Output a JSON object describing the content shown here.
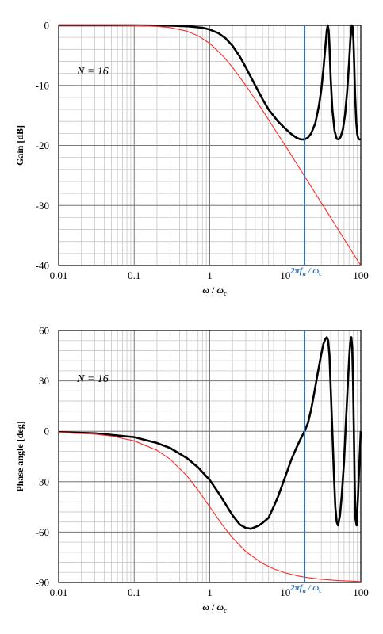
{
  "chart_data": [
    {
      "type": "line",
      "xscale": "log",
      "xlabel_main": "ω",
      "xlabel_sep": " / ",
      "xlabel_main2": "ω",
      "xlabel_sub": "c",
      "ylabel": "Gain [dB]",
      "xlim": [
        0.01,
        100
      ],
      "ylim": [
        -40,
        0
      ],
      "x_ticks": [
        "0.01",
        "0.1",
        "1",
        "10",
        "100"
      ],
      "y_ticks": [
        "0",
        "-10",
        "-20",
        "-30",
        "-40"
      ],
      "y_tick_values": [
        0,
        -10,
        -20,
        -30,
        -40
      ],
      "annotation_N": "N = 16",
      "marker": {
        "x": 18.0,
        "label_2pi": "2π",
        "label_f": "f",
        "label_f_sub": "n",
        "label_sep": " / ",
        "label_w": "ω",
        "label_w_sub": "c"
      },
      "grid": true,
      "colors": {
        "black": "#000000",
        "red": "#ff2a2a",
        "marker": "#2f72b8"
      },
      "series": [
        {
          "color": "#000000",
          "x": [
            0.01,
            0.1,
            0.3,
            0.5,
            0.8,
            1.0,
            1.3,
            1.6,
            2.0,
            2.5,
            3.0,
            4.0,
            5.0,
            6.0,
            8.0,
            10.0,
            12.0,
            14.0,
            16.0,
            18.0,
            20.0,
            22.0,
            25.0,
            28.0,
            30.0,
            32.0,
            34.0,
            35.5,
            36.5,
            37.5,
            38.5,
            40.0,
            42.0,
            45.0,
            48.0,
            51.0,
            54.0,
            58.0,
            62.0,
            66.0,
            70.0,
            73.0,
            76.0,
            78.0,
            80.0,
            82.0,
            84.0,
            87.0,
            90.0,
            93.0,
            96.0,
            100.0
          ],
          "y": [
            0,
            0,
            -0.05,
            -0.15,
            -0.4,
            -0.7,
            -1.3,
            -2.1,
            -3.4,
            -5.2,
            -7.0,
            -10.0,
            -12.3,
            -14.0,
            -16.0,
            -17.2,
            -18.1,
            -18.7,
            -19.0,
            -19.0,
            -18.7,
            -18.0,
            -16.3,
            -13.3,
            -10.7,
            -7.3,
            -3.5,
            -0.8,
            0,
            -0.8,
            -3.5,
            -9.0,
            -14.0,
            -17.6,
            -18.9,
            -19.0,
            -18.6,
            -17.3,
            -14.8,
            -11.0,
            -6.2,
            -2.3,
            0,
            -0.3,
            -2.5,
            -6.8,
            -11.5,
            -16.0,
            -18.2,
            -18.9,
            -19.0,
            -19.0
          ]
        },
        {
          "color": "#ff2a2a",
          "x": [
            0.01,
            0.05,
            0.1,
            0.2,
            0.3,
            0.5,
            0.7,
            1.0,
            1.5,
            2.0,
            3.0,
            5.0,
            7.0,
            10.0,
            20.0,
            30.0,
            50.0,
            100.0
          ],
          "y": [
            0,
            0,
            -0.04,
            -0.17,
            -0.37,
            -0.97,
            -1.74,
            -3.01,
            -5.12,
            -6.99,
            -10.0,
            -14.15,
            -17.03,
            -20.04,
            -26.03,
            -29.55,
            -33.98,
            -40.0
          ]
        }
      ]
    },
    {
      "type": "line",
      "xscale": "log",
      "xlabel_main": "ω",
      "xlabel_sep": " / ",
      "xlabel_main2": "ω",
      "xlabel_sub": "c",
      "ylabel": "Phase angle [deg]",
      "xlim": [
        0.01,
        100
      ],
      "ylim": [
        -90,
        60
      ],
      "x_ticks": [
        "0.01",
        "0.1",
        "1",
        "10",
        "100"
      ],
      "y_ticks": [
        "60",
        "30",
        "0",
        "-30",
        "-60",
        "-90"
      ],
      "y_tick_values": [
        60,
        30,
        0,
        -30,
        -60,
        -90
      ],
      "annotation_N": "N = 16",
      "marker": {
        "x": 18.0,
        "label_2pi": "2π",
        "label_f": "f",
        "label_f_sub": "n",
        "label_sep": " / ",
        "label_w": "ω",
        "label_w_sub": "c"
      },
      "grid": true,
      "colors": {
        "black": "#000000",
        "red": "#ff2a2a",
        "marker": "#2f72b8"
      },
      "series": [
        {
          "color": "#000000",
          "x": [
            0.01,
            0.03,
            0.1,
            0.2,
            0.3,
            0.5,
            0.7,
            1.0,
            1.3,
            1.6,
            2.0,
            2.5,
            3.0,
            3.5,
            4.0,
            4.5,
            5.0,
            6.0,
            7.0,
            8.0,
            10.0,
            12.0,
            14.0,
            16.0,
            18.0,
            20.0,
            22.0,
            24.0,
            27.0,
            30.0,
            32.0,
            34.0,
            35.5,
            37.0,
            38.5,
            40.0,
            42.0,
            44.0,
            46.0,
            48.0,
            50.0,
            53.0,
            56.0,
            60.0,
            64.0,
            68.0,
            71.0,
            73.0,
            75.0,
            77.0,
            79.0,
            81.0,
            83.0,
            85.0,
            88.0,
            92.0,
            96.0,
            100.0
          ],
          "y": [
            -0.5,
            -1.2,
            -3.5,
            -7.0,
            -10.0,
            -16.0,
            -21.5,
            -29.0,
            -36.5,
            -43.0,
            -50.0,
            -55.5,
            -57.5,
            -58.0,
            -57.0,
            -56.0,
            -54.5,
            -51.5,
            -45.0,
            -39.0,
            -27.0,
            -17.0,
            -10.0,
            -4.5,
            0,
            5.0,
            13.0,
            22.0,
            35.0,
            46.0,
            52.0,
            55.0,
            56.0,
            54.0,
            45.0,
            25.0,
            0,
            -25.0,
            -45.0,
            -54.0,
            -56.0,
            -50.0,
            -38.0,
            -18.0,
            8.0,
            32.0,
            47.0,
            54.0,
            56.0,
            50.0,
            30.0,
            0,
            -30.0,
            -52.0,
            -56.0,
            -38.0,
            -18.0,
            0
          ]
        },
        {
          "color": "#ff2a2a",
          "x": [
            0.01,
            0.03,
            0.05,
            0.1,
            0.2,
            0.3,
            0.5,
            0.7,
            1.0,
            1.5,
            2.0,
            3.0,
            5.0,
            7.0,
            10.0,
            15.0,
            20.0,
            30.0,
            50.0,
            100.0
          ],
          "y": [
            -0.57,
            -1.72,
            -2.86,
            -5.71,
            -11.31,
            -16.7,
            -26.57,
            -34.99,
            -45.0,
            -56.31,
            -63.43,
            -71.57,
            -78.69,
            -81.87,
            -84.29,
            -86.19,
            -87.14,
            -88.09,
            -88.85,
            -89.43
          ]
        }
      ]
    }
  ]
}
